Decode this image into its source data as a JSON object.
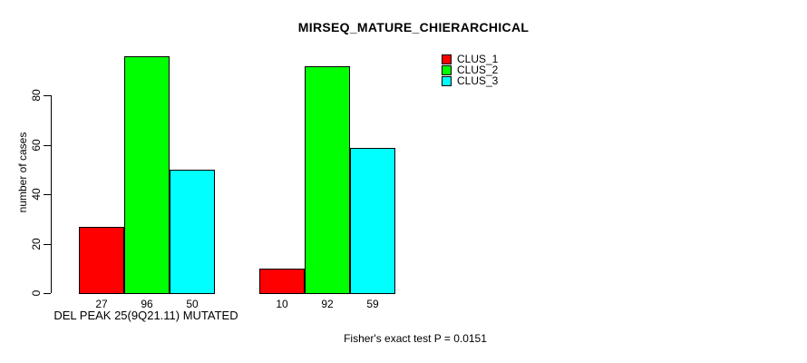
{
  "chart_data": {
    "type": "bar",
    "title": "MIRSEQ_MATURE_CHIERARCHICAL",
    "ylabel": "number of cases",
    "xlabel": "",
    "categories": [
      "DEL PEAK 25(9Q21.11) MUTATED",
      ""
    ],
    "series": [
      {
        "name": "CLUS_1",
        "color": "#ff0000",
        "values": [
          27,
          10
        ]
      },
      {
        "name": "CLUS_2",
        "color": "#00ff00",
        "values": [
          96,
          92
        ]
      },
      {
        "name": "CLUS_3",
        "color": "#00ffff",
        "values": [
          50,
          59
        ]
      }
    ],
    "yticks": [
      0,
      20,
      40,
      60,
      80
    ],
    "ylim": [
      0,
      100
    ],
    "grid": false,
    "bar_value_labels_shown": true,
    "legend_position": "top-right",
    "annotation": "Fisher's exact test P = 0.0151"
  },
  "colors": {
    "axis": "#000000",
    "background": "#ffffff"
  }
}
